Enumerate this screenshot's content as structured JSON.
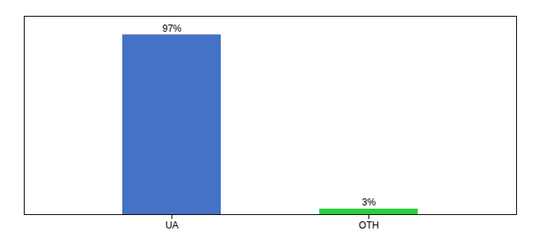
{
  "chart_data": {
    "type": "bar",
    "categories": [
      "UA",
      "OTH"
    ],
    "values": [
      97,
      3
    ],
    "value_labels": [
      "97%",
      "3%"
    ],
    "colors": [
      "#4472c4",
      "#2ecc40"
    ],
    "ylim": [
      0,
      107
    ],
    "grid": false,
    "data_labels": true,
    "tick_labels": "x"
  }
}
